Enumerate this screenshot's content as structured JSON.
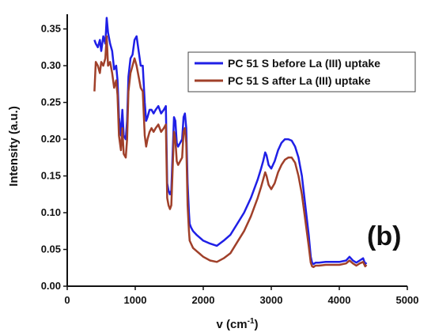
{
  "chart_data": {
    "type": "line",
    "title": "",
    "xlabel": "v (cm",
    "xlabel_sup": "-1",
    "xlabel_close": ")",
    "ylabel": "Intensity (a.u.)",
    "xlim": [
      0,
      5000
    ],
    "ylim": [
      0,
      0.37
    ],
    "xticks": [
      0,
      1000,
      2000,
      3000,
      4000,
      5000
    ],
    "xtick_labels": [
      "0",
      "1000",
      "2000",
      "3000",
      "4000",
      "5000"
    ],
    "yticks": [
      0.0,
      0.05,
      0.1,
      0.15,
      0.2,
      0.25,
      0.3,
      0.35
    ],
    "ytick_labels": [
      "0.00",
      "0.05",
      "0.10",
      "0.15",
      "0.20",
      "0.25",
      "0.30",
      "0.35"
    ],
    "grid": false,
    "legend_position": "top-right",
    "panel_label": "(b)",
    "series": [
      {
        "name": "PC 51 S before La (III) uptake",
        "color": "#1f1fe6",
        "x": [
          400,
          420,
          450,
          480,
          500,
          530,
          560,
          580,
          600,
          630,
          660,
          690,
          720,
          740,
          760,
          790,
          810,
          830,
          860,
          880,
          900,
          930,
          960,
          990,
          1020,
          1050,
          1080,
          1110,
          1140,
          1160,
          1180,
          1210,
          1240,
          1270,
          1300,
          1340,
          1380,
          1420,
          1450,
          1470,
          1490,
          1510,
          1530,
          1550,
          1570,
          1590,
          1610,
          1630,
          1660,
          1690,
          1710,
          1730,
          1750,
          1770,
          1790,
          1800,
          1820,
          1850,
          1900,
          2000,
          2100,
          2200,
          2300,
          2400,
          2500,
          2600,
          2700,
          2800,
          2850,
          2880,
          2910,
          2930,
          2960,
          3000,
          3050,
          3100,
          3150,
          3200,
          3250,
          3300,
          3350,
          3400,
          3450,
          3500,
          3550,
          3580,
          3600,
          3620,
          3650,
          3700,
          3800,
          3900,
          4000,
          4100,
          4150,
          4200,
          4250,
          4300,
          4350,
          4380,
          4400
        ],
        "y": [
          0.335,
          0.33,
          0.325,
          0.335,
          0.32,
          0.34,
          0.33,
          0.365,
          0.345,
          0.33,
          0.32,
          0.295,
          0.3,
          0.28,
          0.23,
          0.205,
          0.24,
          0.205,
          0.2,
          0.225,
          0.285,
          0.31,
          0.315,
          0.335,
          0.34,
          0.32,
          0.3,
          0.3,
          0.25,
          0.225,
          0.23,
          0.24,
          0.24,
          0.235,
          0.24,
          0.245,
          0.235,
          0.24,
          0.245,
          0.14,
          0.13,
          0.125,
          0.13,
          0.18,
          0.23,
          0.225,
          0.195,
          0.19,
          0.195,
          0.2,
          0.23,
          0.235,
          0.215,
          0.14,
          0.1,
          0.085,
          0.08,
          0.075,
          0.07,
          0.062,
          0.058,
          0.055,
          0.062,
          0.07,
          0.085,
          0.1,
          0.12,
          0.145,
          0.16,
          0.17,
          0.182,
          0.178,
          0.165,
          0.16,
          0.17,
          0.185,
          0.195,
          0.2,
          0.2,
          0.198,
          0.19,
          0.175,
          0.15,
          0.11,
          0.07,
          0.04,
          0.032,
          0.03,
          0.032,
          0.032,
          0.033,
          0.033,
          0.033,
          0.035,
          0.04,
          0.035,
          0.032,
          0.035,
          0.038,
          0.03,
          0.032
        ]
      },
      {
        "name": "PC 51 S after La (III) uptake",
        "color": "#a0402a",
        "x": [
          400,
          420,
          450,
          480,
          500,
          530,
          560,
          580,
          600,
          630,
          660,
          690,
          720,
          740,
          760,
          790,
          810,
          830,
          860,
          880,
          900,
          930,
          960,
          990,
          1020,
          1050,
          1080,
          1110,
          1140,
          1160,
          1180,
          1210,
          1240,
          1270,
          1300,
          1340,
          1380,
          1420,
          1450,
          1470,
          1490,
          1510,
          1530,
          1550,
          1570,
          1590,
          1610,
          1630,
          1660,
          1690,
          1710,
          1730,
          1750,
          1770,
          1790,
          1800,
          1820,
          1850,
          1900,
          2000,
          2100,
          2200,
          2300,
          2400,
          2500,
          2600,
          2700,
          2800,
          2850,
          2880,
          2910,
          2930,
          2960,
          3000,
          3050,
          3100,
          3150,
          3200,
          3250,
          3300,
          3350,
          3400,
          3450,
          3500,
          3550,
          3580,
          3600,
          3620,
          3650,
          3700,
          3800,
          3900,
          4000,
          4100,
          4150,
          4200,
          4250,
          4300,
          4350,
          4380,
          4400
        ],
        "y": [
          0.265,
          0.305,
          0.3,
          0.29,
          0.305,
          0.3,
          0.31,
          0.34,
          0.3,
          0.305,
          0.29,
          0.27,
          0.28,
          0.26,
          0.205,
          0.185,
          0.215,
          0.18,
          0.175,
          0.2,
          0.265,
          0.29,
          0.3,
          0.31,
          0.3,
          0.285,
          0.27,
          0.265,
          0.205,
          0.19,
          0.2,
          0.21,
          0.215,
          0.21,
          0.215,
          0.22,
          0.21,
          0.215,
          0.22,
          0.12,
          0.11,
          0.105,
          0.11,
          0.16,
          0.21,
          0.2,
          0.17,
          0.165,
          0.17,
          0.175,
          0.21,
          0.215,
          0.195,
          0.11,
          0.075,
          0.062,
          0.058,
          0.052,
          0.048,
          0.04,
          0.035,
          0.033,
          0.038,
          0.045,
          0.06,
          0.075,
          0.095,
          0.12,
          0.135,
          0.145,
          0.155,
          0.15,
          0.138,
          0.132,
          0.14,
          0.155,
          0.165,
          0.172,
          0.175,
          0.175,
          0.168,
          0.15,
          0.125,
          0.09,
          0.055,
          0.032,
          0.027,
          0.026,
          0.028,
          0.028,
          0.029,
          0.029,
          0.029,
          0.031,
          0.035,
          0.031,
          0.028,
          0.031,
          0.033,
          0.027,
          0.029
        ]
      }
    ]
  }
}
